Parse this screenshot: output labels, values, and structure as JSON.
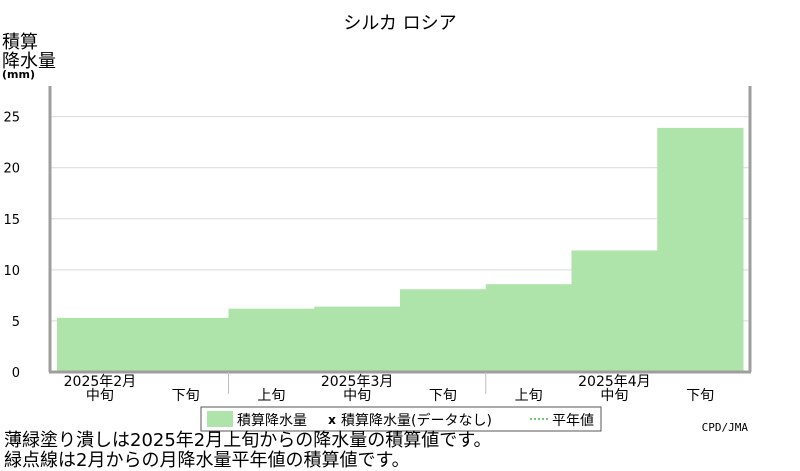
{
  "chart_data": {
    "type": "area",
    "title": "シルカ ロシア",
    "ylabel_lines": [
      "積算",
      "降水量",
      "(mm)"
    ],
    "ylim": [
      0,
      28
    ],
    "yticks": [
      0,
      5,
      10,
      15,
      20,
      25
    ],
    "grid": true,
    "periods": [
      "2月中旬",
      "2月下旬",
      "3月上旬",
      "3月中旬",
      "3月下旬",
      "4月上旬",
      "4月中旬",
      "4月下旬"
    ],
    "period_labels": [
      "中旬",
      "下旬",
      "上旬",
      "中旬",
      "下旬",
      "上旬",
      "中旬",
      "下旬"
    ],
    "month_labels": [
      {
        "label": "2025年2月",
        "period_index": 0
      },
      {
        "label": "2025年3月",
        "period_index": 3
      },
      {
        "label": "2025年4月",
        "period_index": 6
      }
    ],
    "series": [
      {
        "name": "積算降水量",
        "color": "#aee3a9",
        "values": [
          5.3,
          5.3,
          6.2,
          6.4,
          8.1,
          8.6,
          11.9,
          23.9
        ]
      }
    ],
    "legend": {
      "placement": "bottom-center",
      "items": [
        {
          "label": "積算降水量",
          "symbol": "swatch",
          "color": "#aee3a9"
        },
        {
          "label": "積算降水量(データなし)",
          "symbol": "x"
        },
        {
          "label": "平年値",
          "symbol": "line-dotted"
        }
      ]
    },
    "credit": "CPD/JMA"
  },
  "footnotes": [
    "薄緑塗り潰しは2025年2月上旬からの降水量の積算値です。",
    "緑点線は2月からの月降水量平年値の積算値です。"
  ]
}
